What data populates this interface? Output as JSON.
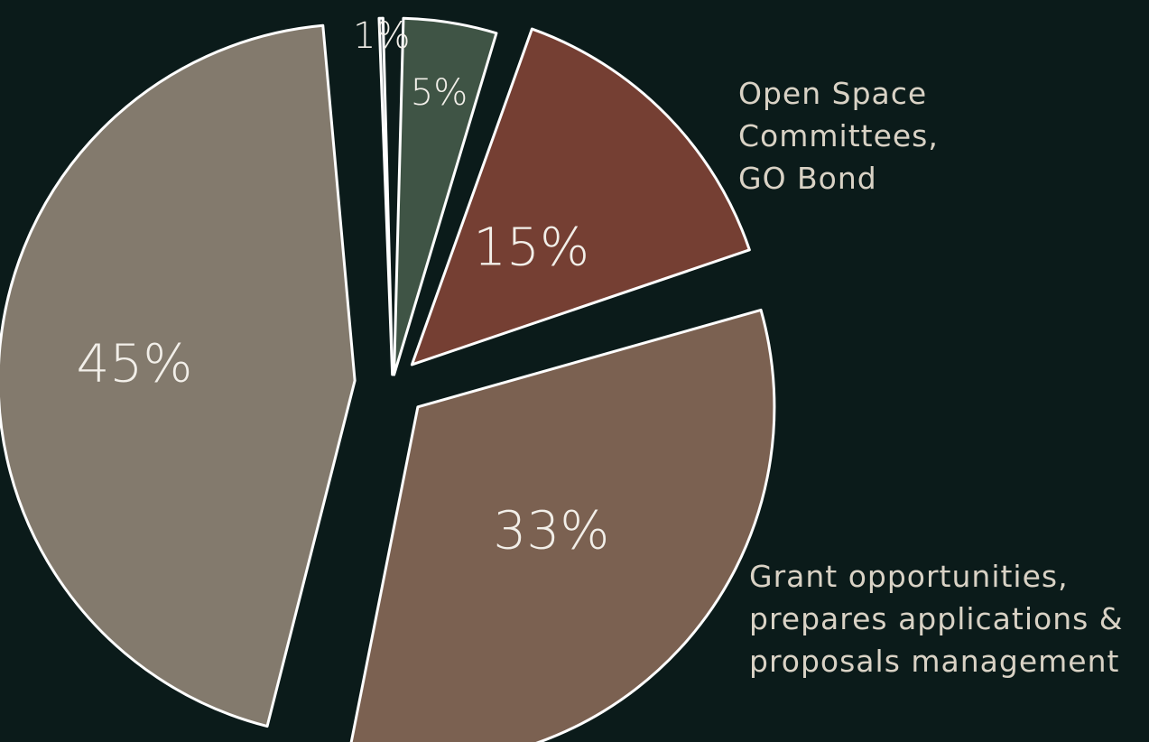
{
  "chart_data": {
    "type": "pie",
    "slices": [
      {
        "label": "5%",
        "value": 5,
        "color": "#3f5445"
      },
      {
        "label": "15%",
        "value": 15,
        "color": "#753f33"
      },
      {
        "label": "33%",
        "value": 33,
        "color": "#7b6151"
      },
      {
        "label": "45%",
        "value": 45,
        "color": "#837a6d"
      },
      {
        "label": "1%",
        "value": 1,
        "color": "#4a5558"
      }
    ],
    "annotations": {
      "open_space": "Open Space\nCommittees,\nGO Bond",
      "grant": "Grant opportunities,\nprepares applications &\nproposals management"
    },
    "stroke_color": "#ffffff",
    "background": "#0b1b1a"
  }
}
